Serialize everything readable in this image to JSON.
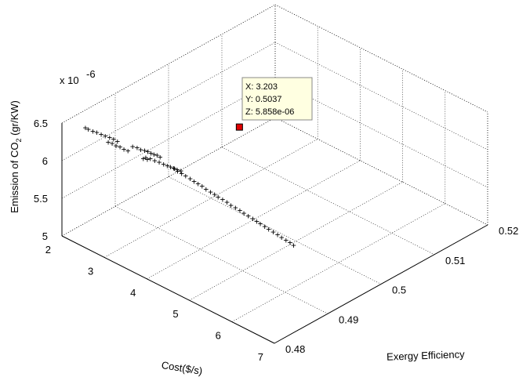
{
  "chart_data": {
    "type": "scatter",
    "title": "",
    "xlabel": "Cost($/s)",
    "ylabel": "Exergy Efficiency",
    "zlabel": "Emission of CO",
    "zlabel_sub": "2",
    "zlabel_suffix": " (gr/KW)",
    "z_exponent": "x 10",
    "z_exponent_power": "-6",
    "xlim": [
      2,
      7
    ],
    "ylim": [
      0.48,
      0.52
    ],
    "zlim": [
      5.0,
      6.5
    ],
    "x_ticks": [
      "2",
      "3",
      "4",
      "5",
      "6",
      "7"
    ],
    "y_ticks": [
      "0.48",
      "0.49",
      "0.5",
      "0.51",
      "0.52"
    ],
    "z_ticks": [
      "5",
      "5.5",
      "6",
      "6.5"
    ],
    "x_tick_values": [
      2,
      3,
      4,
      5,
      6,
      7
    ],
    "y_tick_values": [
      0.48,
      0.49,
      0.5,
      0.51,
      0.52
    ],
    "z_tick_values": [
      5.0,
      5.5,
      6.0,
      6.5
    ],
    "grid": true,
    "marker": "+",
    "series": [
      {
        "x": [
          2.05,
          2.12,
          2.2,
          2.28,
          2.36,
          2.44,
          2.52,
          2.6,
          2.68,
          2.5,
          2.58,
          2.66,
          2.74,
          2.82,
          2.9,
          3.0,
          3.08,
          3.15,
          3.22,
          3.28,
          3.34,
          3.4,
          3.46,
          3.52,
          3.25,
          3.32,
          3.12,
          3.2,
          3.28,
          3.36,
          3.44,
          3.5,
          3.55,
          3.6,
          3.66,
          3.72,
          3.52,
          3.58,
          3.65,
          3.72,
          3.8,
          3.88,
          3.95,
          4.02,
          4.1,
          4.18,
          4.25,
          4.32,
          4.4,
          4.48,
          4.56,
          4.64,
          4.72,
          4.8,
          4.88,
          4.96,
          5.04,
          5.1,
          5.18,
          5.26,
          5.34,
          5.42,
          5.5,
          5.58,
          5.65,
          5.72
        ],
        "y": [
          0.484,
          0.484,
          0.4842,
          0.4843,
          0.4845,
          0.4846,
          0.4848,
          0.4849,
          0.485,
          0.4847,
          0.4848,
          0.4849,
          0.485,
          0.4851,
          0.4852,
          0.4853,
          0.4855,
          0.4856,
          0.4858,
          0.4859,
          0.486,
          0.4861,
          0.4862,
          0.4863,
          0.4853,
          0.4855,
          0.4868,
          0.487,
          0.4872,
          0.4874,
          0.4876,
          0.4878,
          0.488,
          0.4882,
          0.4884,
          0.4886,
          0.489,
          0.4891,
          0.4893,
          0.4895,
          0.4897,
          0.4898,
          0.49,
          0.4902,
          0.4903,
          0.4905,
          0.4907,
          0.4908,
          0.491,
          0.4912,
          0.4913,
          0.4915,
          0.4917,
          0.4918,
          0.492,
          0.4922,
          0.4923,
          0.4925,
          0.4927,
          0.4928,
          0.493,
          0.4932,
          0.4933,
          0.4935,
          0.4937,
          0.4938
        ],
        "z": [
          6.3,
          6.3,
          6.29,
          6.29,
          6.28,
          6.28,
          6.27,
          6.27,
          6.26,
          6.21,
          6.21,
          6.2,
          6.2,
          6.19,
          6.19,
          6.27,
          6.27,
          6.26,
          6.26,
          6.26,
          6.25,
          6.25,
          6.25,
          6.24,
          6.18,
          6.18,
          6.1,
          6.1,
          6.09,
          6.08,
          6.07,
          6.06,
          6.05,
          6.04,
          6.03,
          6.02,
          5.98,
          5.96,
          5.94,
          5.92,
          5.9,
          5.88,
          5.86,
          5.84,
          5.82,
          5.8,
          5.78,
          5.76,
          5.74,
          5.72,
          5.7,
          5.68,
          5.66,
          5.64,
          5.62,
          5.6,
          5.58,
          5.56,
          5.54,
          5.52,
          5.5,
          5.48,
          5.46,
          5.44,
          5.42,
          5.4
        ]
      }
    ],
    "datatip": {
      "x": 3.203,
      "y": 0.5037,
      "z": 5.858,
      "label_x": "X: 3.203",
      "label_y": "Y: 0.5037",
      "label_z": "Z: 5.858e-06"
    }
  }
}
